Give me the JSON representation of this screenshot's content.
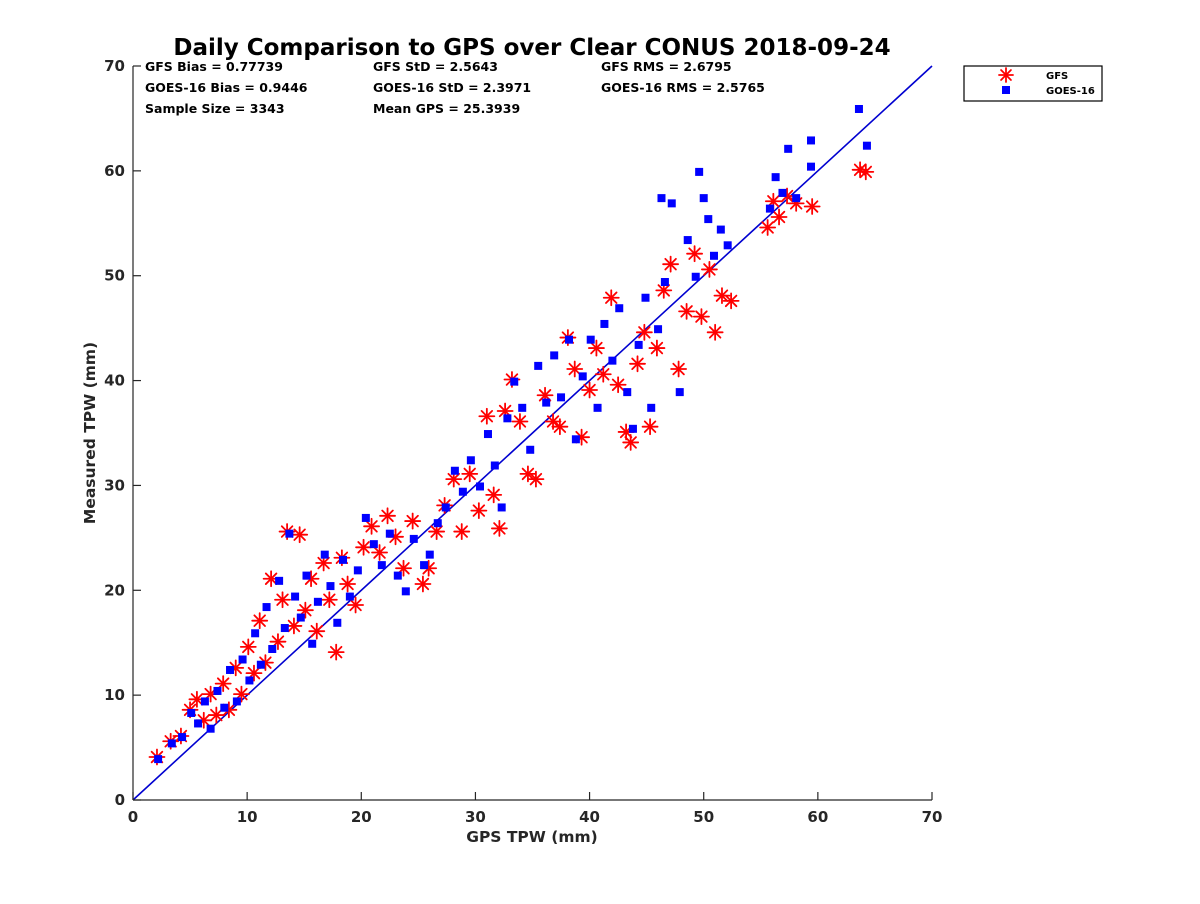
{
  "chart_data": {
    "type": "scatter",
    "title": "Daily Comparison to GPS over Clear CONUS 2018-09-24",
    "xlabel": "GPS TPW (mm)",
    "ylabel": "Measured TPW (mm)",
    "xlim": [
      0,
      70
    ],
    "ylim": [
      0,
      70
    ],
    "xticks": [
      0,
      10,
      20,
      30,
      40,
      50,
      60,
      70
    ],
    "yticks": [
      0,
      10,
      20,
      30,
      40,
      50,
      60,
      70
    ],
    "grid": false,
    "legend_position": "top-right outside",
    "stats": {
      "gfs_bias": "GFS Bias = 0.77739",
      "gfs_std": "GFS StD = 2.5643",
      "gfs_rms": "GFS RMS = 2.6795",
      "goes_bias": "GOES-16 Bias = 0.9446",
      "goes_std": "GOES-16 StD = 2.3971",
      "goes_rms": "GOES-16 RMS = 2.5765",
      "sample_size": "Sample Size = 3343",
      "mean_gps": "Mean GPS = 25.3939"
    },
    "reference_line": {
      "name": "1:1",
      "x": [
        0,
        70
      ],
      "y": [
        0,
        70
      ],
      "color": "#0000d0"
    },
    "series": [
      {
        "name": "GFS",
        "marker": "asterisk",
        "color": "#ff0000",
        "points": [
          [
            2.1,
            4.1
          ],
          [
            3.3,
            5.6
          ],
          [
            4.2,
            6.1
          ],
          [
            5.0,
            8.6
          ],
          [
            5.6,
            9.6
          ],
          [
            6.2,
            7.6
          ],
          [
            6.8,
            10.1
          ],
          [
            7.3,
            8.1
          ],
          [
            7.9,
            11.1
          ],
          [
            8.4,
            8.6
          ],
          [
            9.0,
            12.6
          ],
          [
            9.5,
            10.1
          ],
          [
            10.1,
            14.6
          ],
          [
            10.6,
            12.1
          ],
          [
            11.1,
            17.1
          ],
          [
            11.6,
            13.1
          ],
          [
            12.1,
            21.1
          ],
          [
            12.7,
            15.1
          ],
          [
            13.1,
            19.1
          ],
          [
            13.5,
            25.6
          ],
          [
            14.1,
            16.6
          ],
          [
            14.6,
            25.3
          ],
          [
            15.1,
            18.1
          ],
          [
            15.6,
            21.1
          ],
          [
            16.1,
            16.1
          ],
          [
            16.7,
            22.6
          ],
          [
            17.2,
            19.1
          ],
          [
            17.8,
            14.1
          ],
          [
            18.3,
            23.1
          ],
          [
            18.8,
            20.6
          ],
          [
            19.5,
            18.6
          ],
          [
            20.2,
            24.1
          ],
          [
            20.9,
            26.1
          ],
          [
            21.6,
            23.6
          ],
          [
            22.3,
            27.1
          ],
          [
            23.0,
            25.1
          ],
          [
            23.7,
            22.1
          ],
          [
            24.5,
            26.6
          ],
          [
            25.4,
            20.6
          ],
          [
            25.9,
            22.1
          ],
          [
            26.6,
            25.6
          ],
          [
            27.3,
            28.1
          ],
          [
            28.1,
            30.6
          ],
          [
            28.8,
            25.6
          ],
          [
            29.5,
            31.1
          ],
          [
            30.3,
            27.6
          ],
          [
            31.0,
            36.6
          ],
          [
            31.6,
            29.1
          ],
          [
            32.1,
            25.9
          ],
          [
            32.6,
            37.1
          ],
          [
            33.2,
            40.1
          ],
          [
            33.9,
            36.1
          ],
          [
            34.6,
            31.1
          ],
          [
            35.3,
            30.6
          ],
          [
            36.1,
            38.6
          ],
          [
            36.8,
            36.1
          ],
          [
            37.4,
            35.6
          ],
          [
            38.1,
            44.1
          ],
          [
            38.7,
            41.1
          ],
          [
            39.3,
            34.6
          ],
          [
            40.0,
            39.1
          ],
          [
            40.6,
            43.1
          ],
          [
            41.2,
            40.6
          ],
          [
            41.9,
            47.9
          ],
          [
            42.5,
            39.6
          ],
          [
            43.2,
            35.1
          ],
          [
            43.6,
            34.1
          ],
          [
            44.2,
            41.6
          ],
          [
            44.8,
            44.6
          ],
          [
            45.3,
            35.6
          ],
          [
            45.9,
            43.1
          ],
          [
            46.5,
            48.6
          ],
          [
            47.1,
            51.1
          ],
          [
            47.8,
            41.1
          ],
          [
            48.5,
            46.6
          ],
          [
            49.2,
            52.1
          ],
          [
            49.8,
            46.1
          ],
          [
            50.5,
            50.6
          ],
          [
            51.0,
            44.6
          ],
          [
            51.6,
            48.1
          ],
          [
            52.4,
            47.6
          ],
          [
            55.6,
            54.6
          ],
          [
            56.1,
            57.1
          ],
          [
            56.6,
            55.6
          ],
          [
            57.3,
            57.6
          ],
          [
            58.1,
            56.9
          ],
          [
            59.5,
            56.6
          ],
          [
            63.7,
            60.1
          ],
          [
            64.2,
            59.9
          ]
        ]
      },
      {
        "name": "GOES-16",
        "marker": "square",
        "color": "#0000ff",
        "points": [
          [
            2.2,
            3.9
          ],
          [
            3.4,
            5.4
          ],
          [
            4.3,
            6.0
          ],
          [
            5.1,
            8.3
          ],
          [
            5.7,
            7.3
          ],
          [
            6.3,
            9.4
          ],
          [
            6.8,
            6.8
          ],
          [
            7.4,
            10.4
          ],
          [
            8.0,
            8.8
          ],
          [
            8.5,
            12.4
          ],
          [
            9.1,
            9.4
          ],
          [
            9.6,
            13.4
          ],
          [
            10.2,
            11.4
          ],
          [
            10.7,
            15.9
          ],
          [
            11.2,
            12.9
          ],
          [
            11.7,
            18.4
          ],
          [
            12.2,
            14.4
          ],
          [
            12.8,
            20.9
          ],
          [
            13.3,
            16.4
          ],
          [
            13.7,
            25.4
          ],
          [
            14.2,
            19.4
          ],
          [
            14.7,
            17.4
          ],
          [
            15.2,
            21.4
          ],
          [
            15.7,
            14.9
          ],
          [
            16.2,
            18.9
          ],
          [
            16.8,
            23.4
          ],
          [
            17.3,
            20.4
          ],
          [
            17.9,
            16.9
          ],
          [
            18.4,
            22.9
          ],
          [
            19.0,
            19.4
          ],
          [
            19.7,
            21.9
          ],
          [
            20.4,
            26.9
          ],
          [
            21.1,
            24.4
          ],
          [
            21.8,
            22.4
          ],
          [
            22.5,
            25.4
          ],
          [
            23.2,
            21.4
          ],
          [
            23.9,
            19.9
          ],
          [
            24.6,
            24.9
          ],
          [
            25.5,
            22.4
          ],
          [
            26.0,
            23.4
          ],
          [
            26.7,
            26.4
          ],
          [
            27.4,
            27.9
          ],
          [
            28.2,
            31.4
          ],
          [
            28.9,
            29.4
          ],
          [
            29.6,
            32.4
          ],
          [
            30.4,
            29.9
          ],
          [
            31.1,
            34.9
          ],
          [
            31.7,
            31.9
          ],
          [
            32.3,
            27.9
          ],
          [
            32.8,
            36.4
          ],
          [
            33.4,
            39.9
          ],
          [
            34.1,
            37.4
          ],
          [
            34.8,
            33.4
          ],
          [
            35.5,
            41.4
          ],
          [
            36.2,
            37.9
          ],
          [
            36.9,
            42.4
          ],
          [
            37.5,
            38.4
          ],
          [
            38.2,
            43.9
          ],
          [
            38.8,
            34.4
          ],
          [
            39.4,
            40.4
          ],
          [
            40.1,
            43.9
          ],
          [
            40.7,
            37.4
          ],
          [
            41.3,
            45.4
          ],
          [
            42.0,
            41.9
          ],
          [
            42.6,
            46.9
          ],
          [
            43.3,
            38.9
          ],
          [
            43.8,
            35.4
          ],
          [
            44.3,
            43.4
          ],
          [
            44.9,
            47.9
          ],
          [
            45.4,
            37.4
          ],
          [
            46.0,
            44.9
          ],
          [
            46.3,
            57.4
          ],
          [
            46.6,
            49.4
          ],
          [
            47.2,
            56.9
          ],
          [
            47.9,
            38.9
          ],
          [
            48.6,
            53.4
          ],
          [
            49.3,
            49.9
          ],
          [
            49.6,
            59.9
          ],
          [
            50.0,
            57.4
          ],
          [
            50.4,
            55.4
          ],
          [
            50.9,
            51.9
          ],
          [
            51.5,
            54.4
          ],
          [
            52.1,
            52.9
          ],
          [
            55.8,
            56.4
          ],
          [
            56.3,
            59.4
          ],
          [
            56.9,
            57.9
          ],
          [
            57.4,
            62.1
          ],
          [
            58.1,
            57.4
          ],
          [
            59.4,
            60.4
          ],
          [
            59.4,
            62.9
          ],
          [
            63.6,
            65.9
          ],
          [
            64.3,
            62.4
          ]
        ]
      }
    ]
  }
}
